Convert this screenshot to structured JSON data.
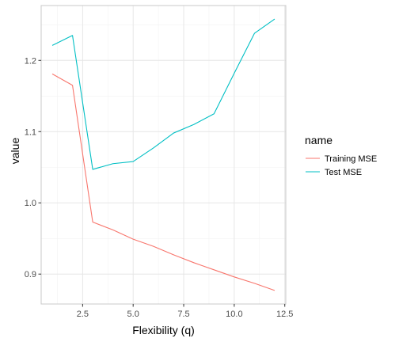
{
  "chart_data": {
    "type": "line",
    "xlabel": "Flexibility (q)",
    "ylabel": "value",
    "xlim": [
      0.45,
      12.55
    ],
    "ylim": [
      0.858,
      1.277
    ],
    "x_ticks": [
      2.5,
      5.0,
      7.5,
      10.0,
      12.5
    ],
    "x_tick_labels": [
      "2.5",
      "5.0",
      "7.5",
      "10.0",
      "12.5"
    ],
    "y_ticks": [
      0.9,
      1.0,
      1.1,
      1.2
    ],
    "y_tick_labels": [
      "0.9",
      "1.0",
      "1.1",
      "1.2"
    ],
    "grid": true,
    "legend": {
      "title": "name",
      "position": "right"
    },
    "x": [
      1,
      2,
      3,
      4,
      5,
      6,
      7,
      8,
      9,
      10,
      11,
      12
    ],
    "series": [
      {
        "name": "Training MSE",
        "color": "#F8766D",
        "values": [
          1.181,
          1.165,
          0.973,
          0.962,
          0.949,
          0.939,
          0.927,
          0.916,
          0.906,
          0.896,
          0.887,
          0.877
        ]
      },
      {
        "name": "Test MSE",
        "color": "#00BFC4",
        "values": [
          1.221,
          1.235,
          1.047,
          1.055,
          1.058,
          1.077,
          1.098,
          1.11,
          1.125,
          1.182,
          1.238,
          1.258
        ]
      }
    ]
  }
}
